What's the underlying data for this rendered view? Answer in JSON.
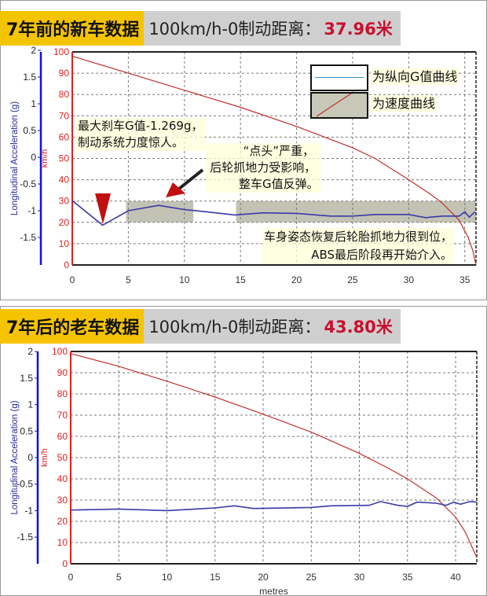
{
  "colors": {
    "speed": "#c0302a",
    "g": "#3a3aa8",
    "g_axis": "#1010e0",
    "speed_axis": "#e02020",
    "highlight": "#b8b8a8",
    "header_tag": "#f5c400",
    "header_bg": "#cfcfcf",
    "value": "#c8102e"
  },
  "panels": [
    {
      "tag": "7年前的新车数据",
      "label": "100km/h-0制动距离：",
      "value": "37.96米"
    },
    {
      "tag": "7年后的老车数据",
      "label": "100km/h-0制动距离：",
      "value": "43.80米"
    }
  ],
  "annotations": {
    "max_g": [
      "最大刹车G值-1.269g，",
      "制动系统力度惊人。"
    ],
    "nod": [
      "“点头”严重，",
      "后轮抓地力受影响，",
      "整车G值反弹。"
    ],
    "recover": [
      "车身姿态恢复后轮胎抓地力很到位，",
      "ABS最后阶段再开始介入。"
    ]
  },
  "legend": [
    {
      "label": "为纵向G值曲线",
      "series": "g"
    },
    {
      "label": "为速度曲线",
      "series": "speed"
    }
  ],
  "chart_data": [
    {
      "type": "line",
      "xlabel": "",
      "ylabel_left": "Longitudinal Acceleration (g)",
      "ylabel_right": "km/h",
      "xlim": [
        0,
        36
      ],
      "x_ticks": [
        0,
        5,
        10,
        15,
        20,
        25,
        30,
        35
      ],
      "speed_lim": [
        0,
        100
      ],
      "speed_ticks": [
        0,
        10,
        20,
        30,
        40,
        50,
        60,
        70,
        80,
        90,
        100
      ],
      "g_ticks": [
        2,
        1.5,
        1,
        0.5,
        0,
        -0.5,
        -1,
        -1.5
      ],
      "grid": true,
      "highlights": [
        {
          "x": [
            4.8,
            10.8
          ],
          "speed": [
            20,
            30
          ]
        },
        {
          "x": [
            14.6,
            36
          ],
          "speed": [
            20,
            30
          ]
        }
      ],
      "series": [
        {
          "key": "speed",
          "x": [
            0,
            5,
            10,
            15,
            20,
            25,
            27,
            30,
            32,
            33,
            34.5,
            35.3,
            35.7,
            36
          ],
          "y": [
            98,
            90,
            82,
            74,
            65,
            55,
            50,
            40,
            33,
            29,
            21,
            13,
            7,
            0
          ]
        },
        {
          "key": "g",
          "x": [
            0,
            2.7,
            5,
            7.7,
            10,
            12,
            14.5,
            17,
            20,
            23,
            25,
            27,
            30,
            31.5,
            33,
            34.5,
            35,
            35.4,
            35.9
          ],
          "y": [
            -0.81,
            -1.27,
            -1.0,
            -0.9,
            -0.98,
            -1.02,
            -1.08,
            -1.04,
            -1.05,
            -1.1,
            -1.1,
            -1.07,
            -1.07,
            -1.13,
            -1.1,
            -1.1,
            -1.02,
            -1.12,
            -1.02
          ]
        }
      ]
    },
    {
      "type": "line",
      "xlabel": "metres",
      "ylabel_left": "Longitudinal Acceleration (g)",
      "ylabel_right": "km/h",
      "xlim": [
        0,
        42.2
      ],
      "x_ticks": [
        0,
        5,
        10,
        15,
        20,
        25,
        30,
        35,
        40
      ],
      "speed_lim": [
        0,
        100
      ],
      "speed_ticks": [
        0,
        10,
        20,
        30,
        40,
        50,
        60,
        70,
        80,
        90,
        100
      ],
      "g_ticks": [
        2,
        1.5,
        1,
        0.5,
        0,
        -0.5,
        -1,
        -1.5
      ],
      "grid": true,
      "highlights": [],
      "series": [
        {
          "key": "speed",
          "x": [
            0,
            5,
            10,
            15,
            20,
            25,
            30,
            33,
            35,
            38,
            40,
            41,
            42,
            42.2
          ],
          "y": [
            99,
            93,
            86,
            78.5,
            70.5,
            62,
            52,
            45,
            40,
            31,
            22,
            15,
            5,
            3
          ]
        },
        {
          "key": "g",
          "x": [
            0,
            5,
            10,
            15,
            17,
            19,
            25,
            27,
            31,
            32.2,
            34,
            35,
            36,
            38,
            39,
            39.8,
            40.5,
            41.5,
            42.2
          ],
          "y": [
            -0.99,
            -0.97,
            -1.0,
            -0.95,
            -0.91,
            -0.96,
            -0.94,
            -0.91,
            -0.9,
            -0.83,
            -0.9,
            -0.92,
            -0.84,
            -0.86,
            -0.9,
            -0.84,
            -0.88,
            -0.83,
            -0.84
          ]
        }
      ]
    }
  ]
}
